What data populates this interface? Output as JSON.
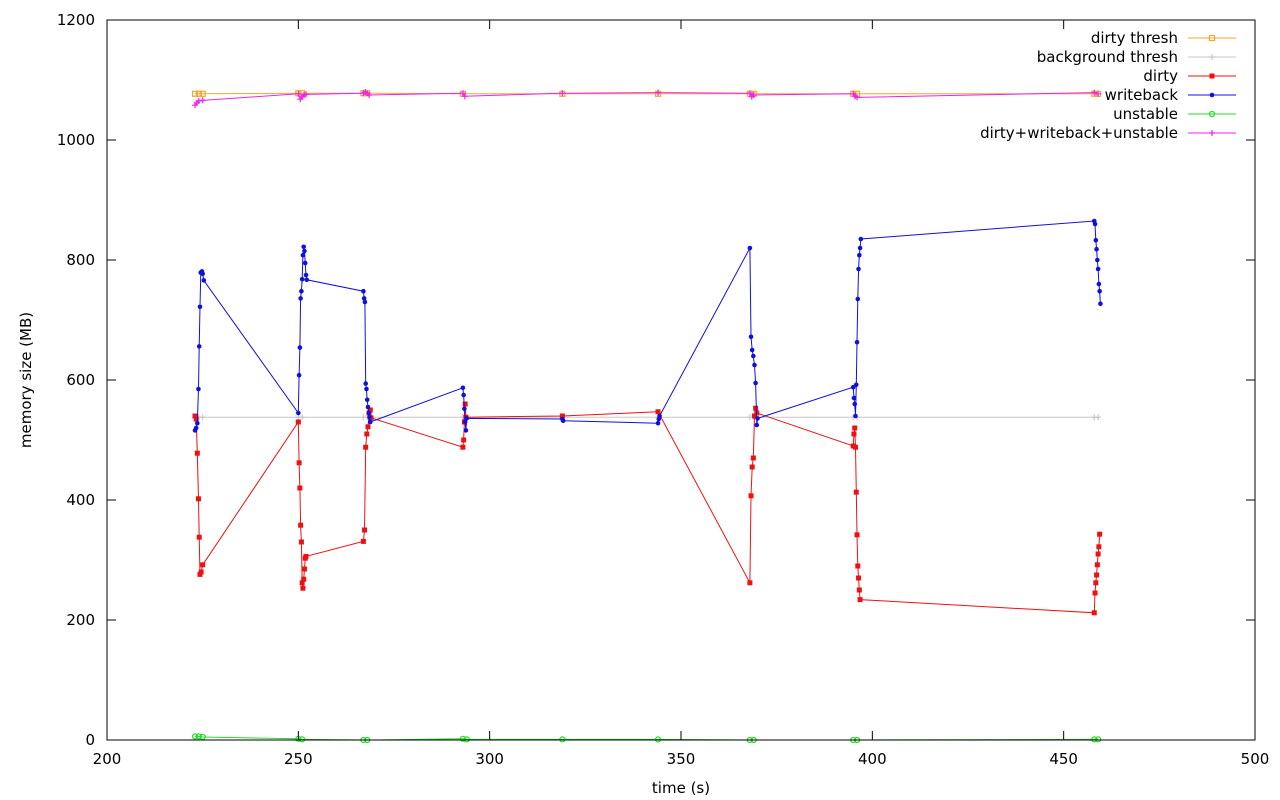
{
  "chart_data": {
    "type": "line",
    "title": "",
    "xlabel": "time (s)",
    "ylabel": "memory size (MB)",
    "xlim": [
      200,
      500
    ],
    "ylim": [
      0,
      1200
    ],
    "xticks": [
      200,
      250,
      300,
      350,
      400,
      450,
      500
    ],
    "yticks": [
      0,
      200,
      400,
      600,
      800,
      1000,
      1200
    ],
    "grid": false,
    "legend_position": "top-right",
    "series": [
      {
        "name": "dirty thresh",
        "color": "#f0a830",
        "marker": "square-open",
        "points": [
          [
            223,
            1077
          ],
          [
            224,
            1077
          ],
          [
            225,
            1077
          ],
          [
            250,
            1078
          ],
          [
            251,
            1078
          ],
          [
            267,
            1078
          ],
          [
            268,
            1078
          ],
          [
            293,
            1077
          ],
          [
            319,
            1077
          ],
          [
            344,
            1077
          ],
          [
            368,
            1077
          ],
          [
            369,
            1077
          ],
          [
            395,
            1077
          ],
          [
            396,
            1077
          ],
          [
            458,
            1077
          ],
          [
            459,
            1077
          ]
        ]
      },
      {
        "name": "background thresh",
        "color": "#c8c8c8",
        "marker": "plus",
        "points": [
          [
            223,
            538
          ],
          [
            224,
            538
          ],
          [
            225,
            538
          ],
          [
            250,
            538
          ],
          [
            251,
            538
          ],
          [
            267,
            538
          ],
          [
            268,
            538
          ],
          [
            293,
            538
          ],
          [
            319,
            538
          ],
          [
            344,
            538
          ],
          [
            368,
            538
          ],
          [
            369,
            538
          ],
          [
            395,
            538
          ],
          [
            396,
            538
          ],
          [
            458,
            538
          ],
          [
            459,
            538
          ]
        ]
      },
      {
        "name": "dirty",
        "color": "#ee1111",
        "marker": "square",
        "points": [
          [
            223,
            540
          ],
          [
            223.3,
            535
          ],
          [
            223.6,
            478
          ],
          [
            223.9,
            402
          ],
          [
            224.1,
            338
          ],
          [
            224.3,
            276
          ],
          [
            224.6,
            280
          ],
          [
            225,
            292
          ],
          [
            250,
            530
          ],
          [
            250.2,
            462
          ],
          [
            250.4,
            420
          ],
          [
            250.6,
            358
          ],
          [
            250.8,
            330
          ],
          [
            251,
            262
          ],
          [
            251.2,
            253
          ],
          [
            251.4,
            268
          ],
          [
            251.6,
            285
          ],
          [
            251.8,
            303
          ],
          [
            252,
            306
          ],
          [
            267,
            331
          ],
          [
            267.3,
            350
          ],
          [
            267.6,
            488
          ],
          [
            267.9,
            510
          ],
          [
            268.2,
            522
          ],
          [
            268.5,
            545
          ],
          [
            268.8,
            550
          ],
          [
            269,
            537
          ],
          [
            293,
            488
          ],
          [
            293.2,
            500
          ],
          [
            293.4,
            530
          ],
          [
            293.6,
            560
          ],
          [
            293.8,
            538
          ],
          [
            319,
            540
          ],
          [
            344,
            547
          ],
          [
            368,
            262
          ],
          [
            368.3,
            407
          ],
          [
            368.6,
            455
          ],
          [
            368.9,
            470
          ],
          [
            369.2,
            540
          ],
          [
            369.5,
            553
          ],
          [
            369.8,
            545
          ],
          [
            395,
            490
          ],
          [
            395.2,
            510
          ],
          [
            395.4,
            520
          ],
          [
            395.6,
            488
          ],
          [
            395.8,
            413
          ],
          [
            396,
            342
          ],
          [
            396.2,
            290
          ],
          [
            396.4,
            270
          ],
          [
            396.6,
            250
          ],
          [
            396.8,
            234
          ],
          [
            458,
            212
          ],
          [
            458.2,
            245
          ],
          [
            458.4,
            262
          ],
          [
            458.6,
            275
          ],
          [
            458.8,
            292
          ],
          [
            459,
            310
          ],
          [
            459.2,
            322
          ],
          [
            459.4,
            343
          ]
        ]
      },
      {
        "name": "writeback",
        "color": "#1010dd",
        "marker": "circle",
        "points": [
          [
            223,
            516
          ],
          [
            223.3,
            520
          ],
          [
            223.6,
            528
          ],
          [
            223.9,
            585
          ],
          [
            224.1,
            656
          ],
          [
            224.3,
            722
          ],
          [
            224.5,
            779
          ],
          [
            224.8,
            781
          ],
          [
            225,
            777
          ],
          [
            225.3,
            766
          ],
          [
            250,
            545
          ],
          [
            250.2,
            608
          ],
          [
            250.4,
            654
          ],
          [
            250.6,
            736
          ],
          [
            250.8,
            748
          ],
          [
            251,
            768
          ],
          [
            251.2,
            808
          ],
          [
            251.4,
            822
          ],
          [
            251.6,
            815
          ],
          [
            251.8,
            795
          ],
          [
            252,
            775
          ],
          [
            252.2,
            767
          ],
          [
            267,
            748
          ],
          [
            267.2,
            736
          ],
          [
            267.4,
            730
          ],
          [
            267.6,
            594
          ],
          [
            267.8,
            585
          ],
          [
            268,
            567
          ],
          [
            268.2,
            555
          ],
          [
            268.4,
            545
          ],
          [
            268.6,
            538
          ],
          [
            268.8,
            530
          ],
          [
            293,
            587
          ],
          [
            293.2,
            575
          ],
          [
            293.4,
            552
          ],
          [
            293.6,
            530
          ],
          [
            293.8,
            516
          ],
          [
            294,
            536
          ],
          [
            319,
            535
          ],
          [
            319.2,
            532
          ],
          [
            344,
            528
          ],
          [
            344.2,
            535
          ],
          [
            344.4,
            540
          ],
          [
            368,
            820
          ],
          [
            368.3,
            672
          ],
          [
            368.6,
            650
          ],
          [
            368.9,
            640
          ],
          [
            369.2,
            625
          ],
          [
            369.5,
            595
          ],
          [
            369.8,
            525
          ],
          [
            370,
            536
          ],
          [
            395,
            588
          ],
          [
            395.2,
            570
          ],
          [
            395.4,
            560
          ],
          [
            395.6,
            540
          ],
          [
            395.8,
            592
          ],
          [
            396,
            663
          ],
          [
            396.2,
            735
          ],
          [
            396.4,
            785
          ],
          [
            396.6,
            808
          ],
          [
            396.8,
            820
          ],
          [
            397,
            835
          ],
          [
            458,
            865
          ],
          [
            458.2,
            860
          ],
          [
            458.4,
            833
          ],
          [
            458.6,
            818
          ],
          [
            458.8,
            800
          ],
          [
            459,
            785
          ],
          [
            459.2,
            760
          ],
          [
            459.4,
            748
          ],
          [
            459.6,
            727
          ]
        ]
      },
      {
        "name": "unstable",
        "color": "#22dd22",
        "marker": "circle-open",
        "points": [
          [
            223,
            6
          ],
          [
            224,
            6
          ],
          [
            225,
            5
          ],
          [
            250,
            2
          ],
          [
            251,
            1
          ],
          [
            267,
            0
          ],
          [
            268,
            0
          ],
          [
            293,
            2
          ],
          [
            294,
            1
          ],
          [
            319,
            1
          ],
          [
            344,
            1
          ],
          [
            368,
            0
          ],
          [
            369,
            0
          ],
          [
            395,
            0
          ],
          [
            396,
            0
          ],
          [
            458,
            1
          ],
          [
            459,
            1
          ]
        ]
      },
      {
        "name": "dirty+writeback+unstable",
        "color": "#ee22ee",
        "marker": "plus",
        "points": [
          [
            223,
            1058
          ],
          [
            223.5,
            1062
          ],
          [
            224,
            1065
          ],
          [
            225,
            1066
          ],
          [
            250,
            1077
          ],
          [
            250.5,
            1068
          ],
          [
            251,
            1072
          ],
          [
            251.5,
            1075
          ],
          [
            252,
            1076
          ],
          [
            267,
            1078
          ],
          [
            267.5,
            1080
          ],
          [
            268,
            1078
          ],
          [
            268.5,
            1075
          ],
          [
            293,
            1078
          ],
          [
            293.5,
            1073
          ],
          [
            319,
            1078
          ],
          [
            344,
            1079
          ],
          [
            368,
            1078
          ],
          [
            368.5,
            1072
          ],
          [
            369,
            1075
          ],
          [
            395,
            1077
          ],
          [
            395.5,
            1073
          ],
          [
            396,
            1071
          ],
          [
            458,
            1079
          ],
          [
            459,
            1077
          ]
        ]
      }
    ]
  }
}
